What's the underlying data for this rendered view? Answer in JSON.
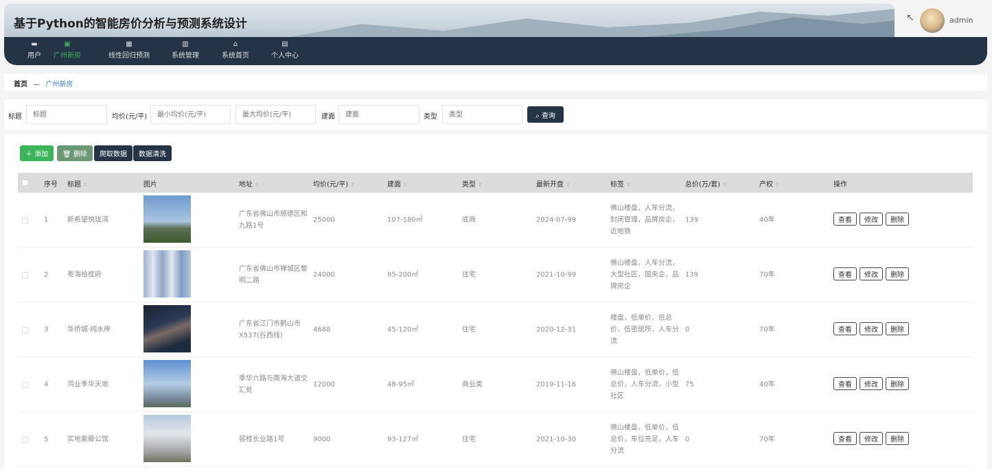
{
  "header": {
    "title": "基于Python的智能房价分析与预测系统设计",
    "username": "admin"
  },
  "nav": [
    {
      "label": "用户",
      "icon": "briefcase-icon"
    },
    {
      "label": "广州新房",
      "icon": "chart-icon",
      "active": true
    },
    {
      "label": "线性回归预测",
      "icon": "grid-icon"
    },
    {
      "label": "系统管理",
      "icon": "book-icon"
    },
    {
      "label": "系统首页",
      "icon": "home-icon"
    },
    {
      "label": "个人中心",
      "icon": "wallet-icon"
    }
  ],
  "breadcrumb": {
    "home": "首页",
    "sep": "—",
    "current": "广州新房"
  },
  "search": {
    "title_label": "标题",
    "title_placeholder": "标题",
    "price_label": "均价(元/平)",
    "min_placeholder": "最小均价(元/平)",
    "max_placeholder": "最大均价(元/平)",
    "area_label": "建面",
    "area_placeholder": "建面",
    "type_label": "类型",
    "type_placeholder": "类型",
    "query": "查询"
  },
  "toolbar": {
    "add": "添加",
    "delete": "删除",
    "crawl": "爬取数据",
    "clean": "数据清洗"
  },
  "colors": {
    "nav_bg": "#243446",
    "active": "#3dae5a",
    "add": "#3cb55a",
    "delete": "#6c9878"
  },
  "table": {
    "headers": [
      "序号",
      "标题",
      "图片",
      "地址",
      "均价(元/平)",
      "建面",
      "类型",
      "最新开盘",
      "标签",
      "总价(万/套)",
      "产权",
      "操作"
    ],
    "actions": [
      "查看",
      "修改",
      "删除"
    ],
    "rows": [
      {
        "no": "1",
        "title": "新希望悦珑湾",
        "address": "广东省佛山市顺德区和九路1号",
        "price": "25000",
        "area": "107-180㎡",
        "type": "底商",
        "open": "2024-07-99",
        "tags": "佛山楼盘，人车分流，封闭管理，品牌房企，近地铁",
        "total": "139",
        "right": "40年"
      },
      {
        "no": "2",
        "title": "粤海拾桂府",
        "address": "广东省佛山市禅城区黎明二路",
        "price": "24000",
        "area": "95-200㎡",
        "type": "住宅",
        "open": "2021-10-99",
        "tags": "佛山楼盘，人车分流，大型社区，国央企，品牌房企",
        "total": "139",
        "right": "70年"
      },
      {
        "no": "3",
        "title": "华侨城·纯水岸",
        "address": "广东省江门市鹤山市X537(谷西线)",
        "price": "4688",
        "area": "45-120㎡",
        "type": "住宅",
        "open": "2020-12-31",
        "tags": "楼盘，低单价，低总价，低密居所，人车分流",
        "total": "0",
        "right": "70年"
      },
      {
        "no": "4",
        "title": "鸿业季华天地",
        "address": "季华六路与南海大道交汇处",
        "price": "12000",
        "area": "48-95㎡",
        "type": "商业类",
        "open": "2019-11-16",
        "tags": "佛山楼盘，低单价，低总价，人车分流，小型社区",
        "total": "75",
        "right": "40年"
      },
      {
        "no": "5",
        "title": "实地紫藤公馆",
        "address": "容桂长业路1号",
        "price": "9000",
        "area": "93-127㎡",
        "type": "住宅",
        "open": "2021-10-30",
        "tags": "佛山楼盘，低单价，低总价，车位充足，人车分流",
        "total": "0",
        "right": "70年"
      }
    ]
  }
}
